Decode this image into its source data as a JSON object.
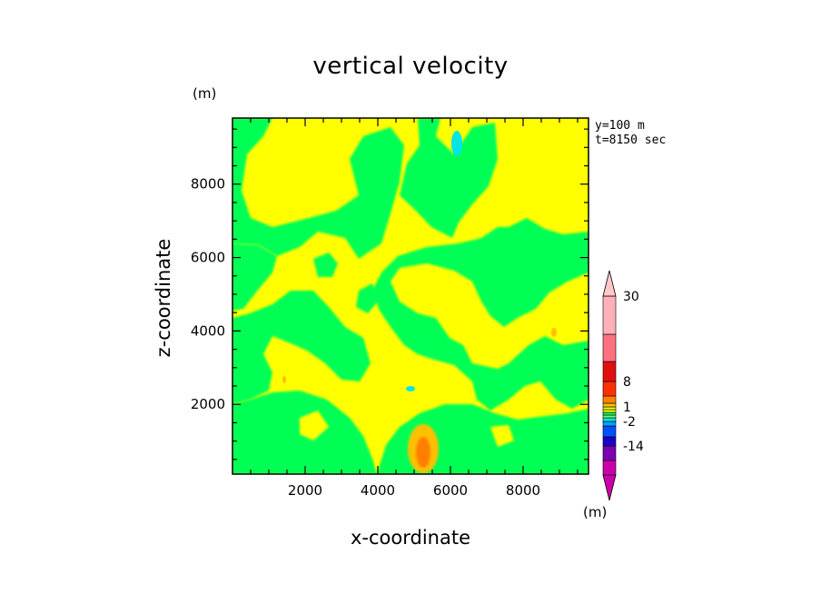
{
  "chart_data": {
    "type": "heatmap",
    "title": "vertical velocity",
    "xlabel": "x-coordinate",
    "ylabel": "z-coordinate",
    "x_unit": "(m)",
    "y_unit": "(m)",
    "annotation": [
      "y=100 m",
      "t=8150 sec"
    ],
    "xlim": [
      0,
      9800
    ],
    "ylim": [
      100,
      9800
    ],
    "xticks": [
      2000,
      4000,
      6000,
      8000
    ],
    "yticks": [
      2000,
      4000,
      6000,
      8000
    ],
    "colorbar": {
      "levels": [
        -30,
        -20,
        -14,
        -8,
        -4,
        -2,
        -1,
        -0.5,
        0,
        0.5,
        1,
        2,
        4,
        8,
        14,
        20,
        30
      ],
      "labels": [
        "30",
        "8",
        "1",
        "-2",
        "-14"
      ],
      "label_values": [
        30,
        8,
        1,
        -2,
        -14
      ],
      "colors": [
        "#cc00aa",
        "#7a00b0",
        "#1d00c8",
        "#0050ff",
        "#00a0ff",
        "#00e6e6",
        "#70ff70",
        "#00ff55",
        "#ffff00",
        "#e6ff20",
        "#ffc000",
        "#ff8000",
        "#ff3000",
        "#e01010",
        "#ff7080",
        "#ffb0b8"
      ],
      "extend_colors": {
        "low": "#cc00aa",
        "high": "#ffc8c8"
      }
    },
    "field_description_colors": {
      "background": "#ffff00",
      "downdraft_weak": "#00ff55",
      "updraft_moderate": "#ffc000",
      "updraft_strong": "#ff8000",
      "downdraft_moderate": "#00e6e6"
    }
  }
}
